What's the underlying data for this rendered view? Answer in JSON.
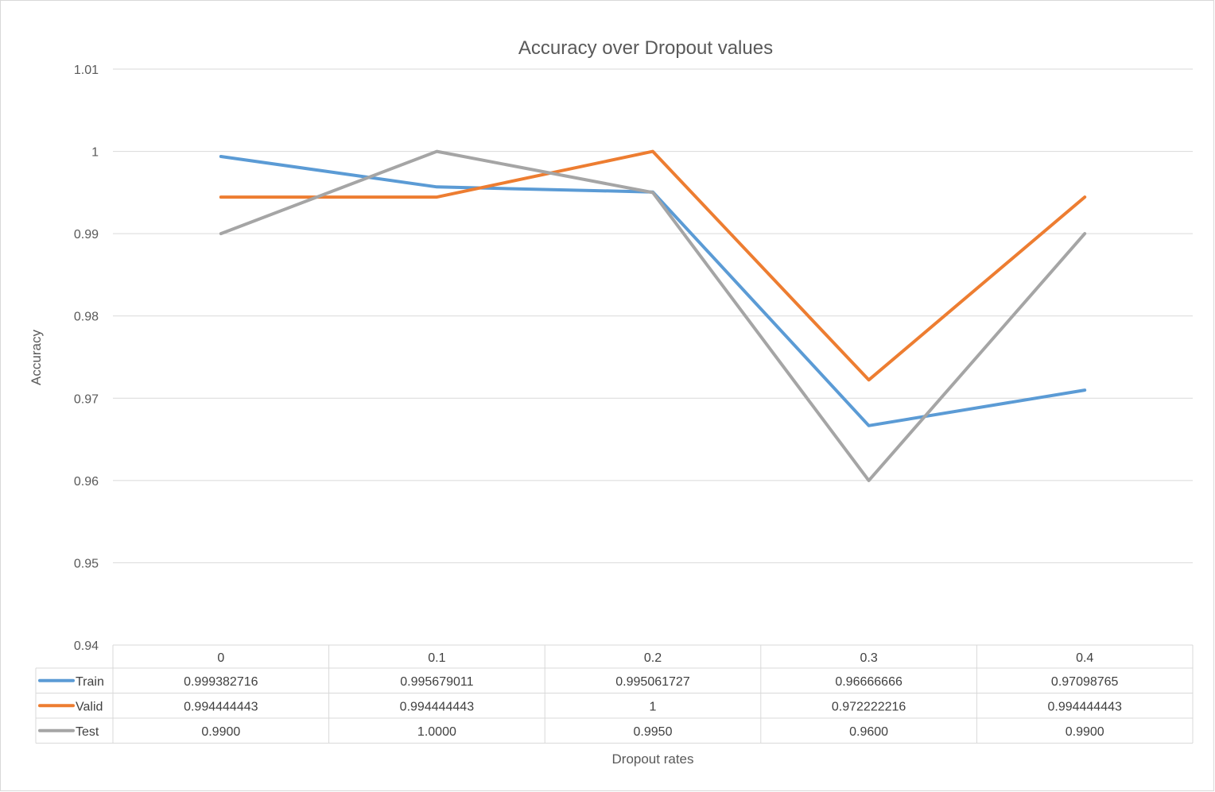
{
  "chart_data": {
    "type": "line",
    "title": "Accuracy over Dropout values",
    "xlabel": "Dropout rates",
    "ylabel": "Accuracy",
    "ylim": [
      0.94,
      1.01
    ],
    "yticks": [
      "1.01",
      "1",
      "0.99",
      "0.98",
      "0.97",
      "0.96",
      "0.95",
      "0.94"
    ],
    "ytick_values": [
      1.01,
      1.0,
      0.99,
      0.98,
      0.97,
      0.96,
      0.95,
      0.94
    ],
    "categories": [
      "0",
      "0.1",
      "0.2",
      "0.3",
      "0.4"
    ],
    "grid": true,
    "legend": "data-table",
    "series": [
      {
        "name": "Train",
        "color": "#5b9bd5",
        "values": [
          0.999382716,
          0.995679011,
          0.995061727,
          0.96666666,
          0.97098765
        ],
        "labels": [
          "0.999382716",
          "0.995679011",
          "0.995061727",
          "0.96666666",
          "0.97098765"
        ]
      },
      {
        "name": "Valid",
        "color": "#ed7d31",
        "values": [
          0.994444443,
          0.994444443,
          1,
          0.972222216,
          0.994444443
        ],
        "labels": [
          "0.994444443",
          "0.994444443",
          "1",
          "0.972222216",
          "0.994444443"
        ]
      },
      {
        "name": "Test",
        "color": "#a5a5a5",
        "values": [
          0.99,
          1.0,
          0.995,
          0.96,
          0.99
        ],
        "labels": [
          "0.9900",
          "1.0000",
          "0.9950",
          "0.9600",
          "0.9900"
        ]
      }
    ]
  }
}
